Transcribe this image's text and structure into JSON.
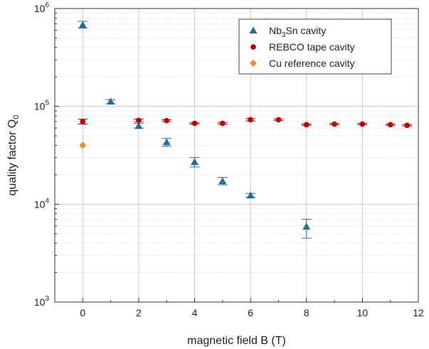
{
  "chart_data": {
    "type": "scatter",
    "xlabel": "magnetic field B (T)",
    "ylabel_main": "quality factor Q",
    "ylabel_sub": "0",
    "xlim": [
      -1,
      12
    ],
    "ylim": [
      1000,
      1000000
    ],
    "yscale": "log",
    "x_ticks": [
      0,
      2,
      4,
      6,
      8,
      10,
      12
    ],
    "y_ticks": [
      {
        "value": 1000,
        "base": "10",
        "exp": "3"
      },
      {
        "value": 10000,
        "base": "10",
        "exp": "4"
      },
      {
        "value": 100000,
        "base": "10",
        "exp": "5"
      },
      {
        "value": 1000000,
        "base": "10",
        "exp": "6"
      }
    ],
    "grid": true,
    "legend_position": "top-right",
    "series": [
      {
        "legend_main": "Nb",
        "legend_sub": "3",
        "legend_rest": "Sn cavity",
        "marker": "triangle",
        "color": "#1f6e9e",
        "points": [
          {
            "x": 0,
            "y": 680000,
            "lo": 630000,
            "hi": 740000
          },
          {
            "x": 1,
            "y": 112000,
            "lo": 106000,
            "hi": 117000
          },
          {
            "x": 2,
            "y": 63000,
            "lo": 60000,
            "hi": 67000
          },
          {
            "x": 3,
            "y": 43000,
            "lo": 39000,
            "hi": 47000
          },
          {
            "x": 4,
            "y": 27000,
            "lo": 24000,
            "hi": 30000
          },
          {
            "x": 5,
            "y": 17200,
            "lo": 15800,
            "hi": 18800
          },
          {
            "x": 6,
            "y": 12300,
            "lo": 11800,
            "hi": 12900
          },
          {
            "x": 8,
            "y": 5900,
            "lo": 4500,
            "hi": 7000
          }
        ]
      },
      {
        "legend_main": "REBCO tape cavity",
        "legend_sub": "",
        "legend_rest": "",
        "marker": "circle",
        "color": "#c00000",
        "points": [
          {
            "x": 0,
            "y": 70000,
            "lo": 66000,
            "hi": 74000
          },
          {
            "x": 2,
            "y": 72000,
            "lo": 70000,
            "hi": 74000
          },
          {
            "x": 3,
            "y": 71500,
            "lo": 70000,
            "hi": 73000
          },
          {
            "x": 4,
            "y": 67000,
            "lo": 66000,
            "hi": 68000
          },
          {
            "x": 5,
            "y": 67000,
            "lo": 65500,
            "hi": 68500
          },
          {
            "x": 6,
            "y": 73000,
            "lo": 71000,
            "hi": 75000
          },
          {
            "x": 7,
            "y": 73000,
            "lo": 71500,
            "hi": 74500
          },
          {
            "x": 8,
            "y": 65000,
            "lo": 64000,
            "hi": 66000
          },
          {
            "x": 9,
            "y": 66000,
            "lo": 65000,
            "hi": 67000
          },
          {
            "x": 10,
            "y": 66000,
            "lo": 65000,
            "hi": 67000
          },
          {
            "x": 11,
            "y": 65000,
            "lo": 64000,
            "hi": 66000
          },
          {
            "x": 11.6,
            "y": 64000,
            "lo": 63000,
            "hi": 65000
          }
        ]
      },
      {
        "legend_main": "Cu reference cavity",
        "legend_sub": "",
        "legend_rest": "",
        "marker": "diamond",
        "color": "#f08a24",
        "points": [
          {
            "x": 0,
            "y": 40000
          }
        ]
      }
    ]
  }
}
